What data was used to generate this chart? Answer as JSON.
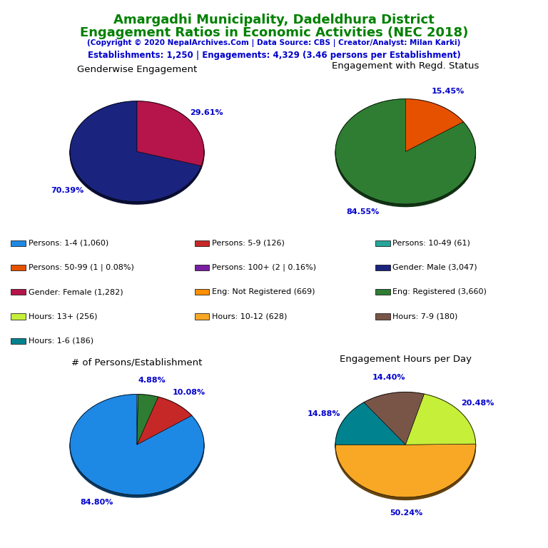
{
  "title_line1": "Amargadhi Municipality, Dadeldhura District",
  "title_line2": "Engagement Ratios in Economic Activities (NEC 2018)",
  "subtitle": "(Copyright © 2020 NepalArchives.Com | Data Source: CBS | Creator/Analyst: Milan Karki)",
  "stats_line": "Establishments: 1,250 | Engagements: 4,329 (3.46 persons per Establishment)",
  "title_color": "#008000",
  "subtitle_color": "#0000CD",
  "stats_color": "#0000CD",
  "pie1_title": "Genderwise Engagement",
  "pie1_values": [
    70.39,
    29.61
  ],
  "pie1_colors": [
    "#1a237e",
    "#b5154b"
  ],
  "pie1_labels": [
    "70.39%",
    "29.61%"
  ],
  "pie1_startangle": 90,
  "pie2_title": "Engagement with Regd. Status",
  "pie2_values": [
    84.55,
    15.45
  ],
  "pie2_colors": [
    "#2e7d32",
    "#e65100"
  ],
  "pie2_labels": [
    "84.55%",
    "15.45%"
  ],
  "pie2_startangle": 90,
  "pie3_title": "# of Persons/Establishment",
  "pie3_values": [
    84.8,
    10.08,
    4.88,
    0.24
  ],
  "pie3_colors": [
    "#1e88e5",
    "#c62828",
    "#2e7d32",
    "#ff8f00"
  ],
  "pie3_labels": [
    "84.80%",
    "10.08%",
    "4.88%",
    ""
  ],
  "pie3_startangle": 90,
  "pie4_title": "Engagement Hours per Day",
  "pie4_values": [
    50.24,
    20.48,
    14.4,
    14.88
  ],
  "pie4_colors": [
    "#f9a825",
    "#c6ef39",
    "#795548",
    "#00838f"
  ],
  "pie4_labels": [
    "50.24%",
    "20.48%",
    "14.40%",
    "14.88%"
  ],
  "pie4_startangle": 180,
  "legend_items": [
    {
      "label": "Persons: 1-4 (1,060)",
      "color": "#1e88e5"
    },
    {
      "label": "Persons: 5-9 (126)",
      "color": "#c62828"
    },
    {
      "label": "Persons: 10-49 (61)",
      "color": "#26a69a"
    },
    {
      "label": "Persons: 50-99 (1 | 0.08%)",
      "color": "#e65100"
    },
    {
      "label": "Persons: 100+ (2 | 0.16%)",
      "color": "#7b1fa2"
    },
    {
      "label": "Gender: Male (3,047)",
      "color": "#1a237e"
    },
    {
      "label": "Gender: Female (1,282)",
      "color": "#b5154b"
    },
    {
      "label": "Eng: Not Registered (669)",
      "color": "#ff8f00"
    },
    {
      "label": "Eng: Registered (3,660)",
      "color": "#2e7d32"
    },
    {
      "label": "Hours: 13+ (256)",
      "color": "#c6ef39"
    },
    {
      "label": "Hours: 10-12 (628)",
      "color": "#f9a825"
    },
    {
      "label": "Hours: 7-9 (180)",
      "color": "#795548"
    },
    {
      "label": "Hours: 1-6 (186)",
      "color": "#00838f"
    }
  ],
  "label_color": "#0000CD"
}
